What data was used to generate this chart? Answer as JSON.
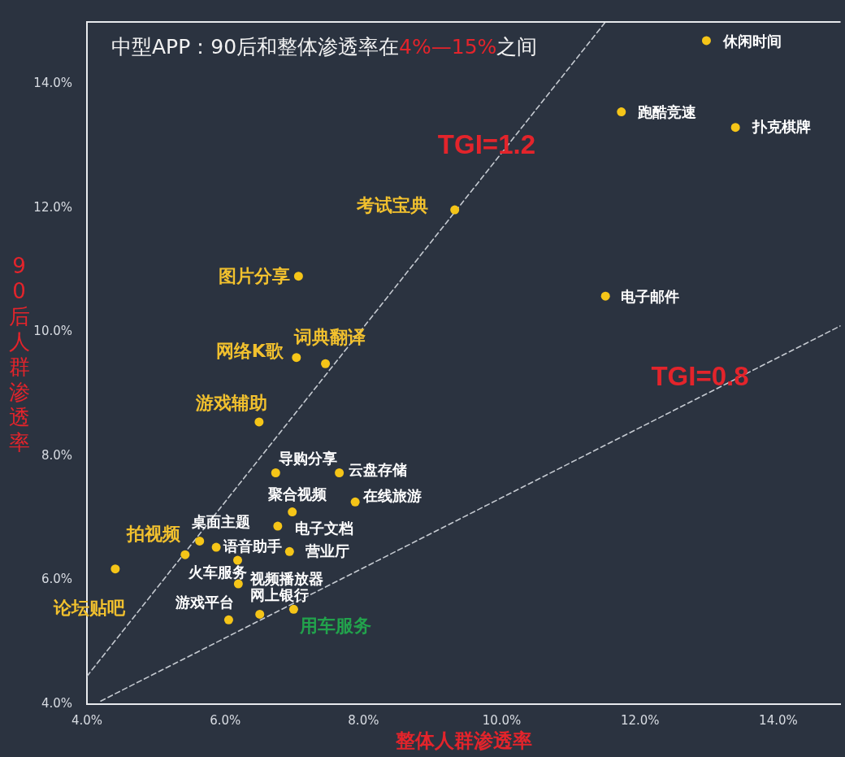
{
  "chart_data": {
    "type": "scatter",
    "title": "中型APP：90后和整体渗透率在4%—15%之间",
    "xlabel": "整体人群渗透率",
    "ylabel": "90后人群渗透率",
    "marker": "circle",
    "xlim": [
      4,
      14.9
    ],
    "xticks": [
      {
        "value": 4,
        "label": "4.0%"
      },
      {
        "value": 6,
        "label": "6.0%"
      },
      {
        "value": 8,
        "label": "8.0%"
      },
      {
        "value": 10,
        "label": "10.0%"
      },
      {
        "value": 12,
        "label": "12.0%"
      },
      {
        "value": 14,
        "label": "14.0%"
      }
    ],
    "ylim": [
      4,
      15
    ],
    "yticks": [
      {
        "value": 4,
        "label": "4.0%"
      },
      {
        "value": 6,
        "label": "6.0%"
      },
      {
        "value": 8,
        "label": "8.0%"
      },
      {
        "value": 10,
        "label": "10.0%"
      },
      {
        "value": 12,
        "label": "12.0%"
      },
      {
        "value": 14,
        "label": "14.0%"
      }
    ],
    "series": [
      {
        "color": "#f5c518",
        "x": [
          9.32,
          7.06,
          7.03,
          7.45,
          6.49,
          5.42,
          4.41
        ],
        "values": [
          11.97,
          10.9,
          9.59,
          9.49,
          8.55,
          6.41,
          6.18
        ]
      },
      {
        "color": "#f5c518",
        "x": [
          12.96,
          11.73,
          13.38,
          11.5,
          6.73,
          7.65,
          7.88,
          6.97,
          6.76,
          6.93,
          5.63,
          5.87,
          6.18,
          6.19,
          6.05,
          6.5
        ],
        "values": [
          14.7,
          13.55,
          13.3,
          10.58,
          7.73,
          7.73,
          7.26,
          7.1,
          6.87,
          6.46,
          6.63,
          6.53,
          6.32,
          5.94,
          5.36,
          5.45
        ]
      },
      {
        "color": "#f5c518",
        "x": [
          6.99
        ],
        "values": [
          5.53
        ]
      },
      {
        "type": "line",
        "name": "TGI=1.2",
        "color": "#c5cad1",
        "line_style": "dashed",
        "marker": "none",
        "x": [
          4,
          11.5
        ],
        "values": [
          4.45,
          15
        ]
      },
      {
        "type": "line",
        "name": "TGI=0.8",
        "color": "#c5cad1",
        "line_style": "dashed",
        "marker": "none",
        "x": [
          4.2,
          14.9
        ],
        "values": [
          4.05,
          10.1
        ]
      }
    ],
    "annotations": [
      {
        "text": "考试宝典",
        "x": 9.32,
        "y": 11.97
      },
      {
        "text": "图片分享",
        "x": 7.06,
        "y": 10.9
      },
      {
        "text": "网络K歌",
        "x": 7.03,
        "y": 9.59
      },
      {
        "text": "词典翻译",
        "x": 7.45,
        "y": 9.49
      },
      {
        "text": "游戏辅助",
        "x": 6.49,
        "y": 8.55
      },
      {
        "text": "拍视频",
        "x": 5.42,
        "y": 6.41
      },
      {
        "text": "论坛贴吧",
        "x": 4.41,
        "y": 6.18
      },
      {
        "text": "休闲时间",
        "x": 12.96,
        "y": 14.7
      },
      {
        "text": "跑酷竞速",
        "x": 11.73,
        "y": 13.55
      },
      {
        "text": "扑克棋牌",
        "x": 13.38,
        "y": 13.3
      },
      {
        "text": "电子邮件",
        "x": 11.5,
        "y": 10.58
      },
      {
        "text": "导购分享",
        "x": 6.73,
        "y": 7.73
      },
      {
        "text": "云盘存储",
        "x": 7.65,
        "y": 7.73
      },
      {
        "text": "在线旅游",
        "x": 7.88,
        "y": 7.26
      },
      {
        "text": "聚合视频",
        "x": 6.97,
        "y": 7.1
      },
      {
        "text": "电子文档",
        "x": 6.76,
        "y": 6.87
      },
      {
        "text": "营业厅",
        "x": 6.93,
        "y": 6.46
      },
      {
        "text": "桌面主题",
        "x": 5.63,
        "y": 6.63
      },
      {
        "text": "语音助手",
        "x": 5.87,
        "y": 6.53
      },
      {
        "text": "火车服务",
        "x": 6.18,
        "y": 6.32
      },
      {
        "text": "视频播放器",
        "x": 6.19,
        "y": 5.94
      },
      {
        "text": "游戏平台",
        "x": 6.05,
        "y": 5.36
      },
      {
        "text": "网上银行",
        "x": 6.5,
        "y": 5.45
      },
      {
        "text": "用车服务",
        "x": 6.99,
        "y": 5.53
      }
    ]
  }
}
